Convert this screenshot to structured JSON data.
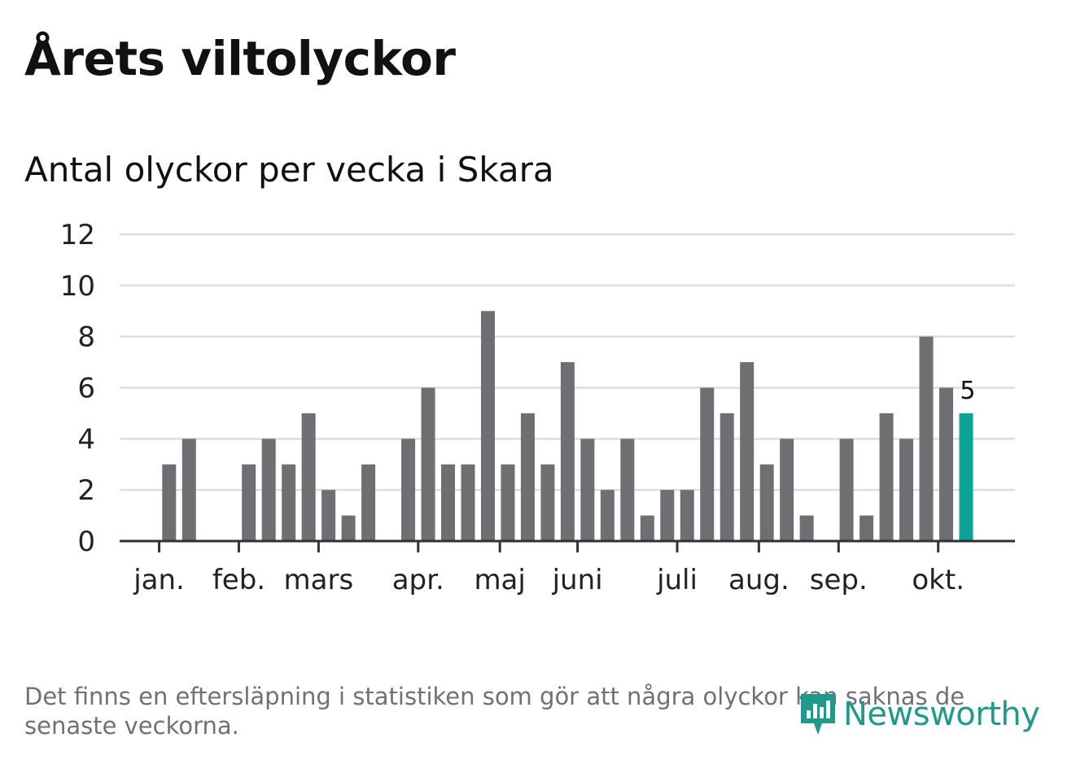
{
  "header": {
    "title": "Årets viltolyckor",
    "subtitle": "Antal olyckor per vecka i Skara"
  },
  "chart_data": {
    "type": "bar",
    "title": "Antal olyckor per vecka i Skara",
    "xlabel": "",
    "ylabel": "",
    "ylim": [
      0,
      12
    ],
    "yticks": [
      "0",
      "2",
      "4",
      "6",
      "8",
      "10",
      "12"
    ],
    "grid": true,
    "weeks": [
      1,
      2,
      3,
      4,
      5,
      6,
      7,
      8,
      9,
      10,
      11,
      12,
      13,
      14,
      15,
      16,
      17,
      18,
      19,
      20,
      21,
      22,
      23,
      24,
      25,
      26,
      27,
      28,
      29,
      30,
      31,
      32,
      33,
      34,
      35,
      36,
      37,
      38,
      39,
      40,
      41,
      42
    ],
    "values": [
      null,
      3,
      4,
      null,
      null,
      3,
      4,
      3,
      5,
      2,
      1,
      3,
      null,
      4,
      6,
      3,
      3,
      9,
      3,
      5,
      3,
      7,
      4,
      2,
      4,
      1,
      2,
      2,
      6,
      5,
      7,
      3,
      4,
      1,
      null,
      4,
      1,
      5,
      4,
      8,
      6,
      5
    ],
    "month_ticks": [
      {
        "label": "jan.",
        "week": 1.5
      },
      {
        "label": "feb.",
        "week": 5.5
      },
      {
        "label": "mars",
        "week": 9.5
      },
      {
        "label": "apr.",
        "week": 14.5
      },
      {
        "label": "maj",
        "week": 18.6
      },
      {
        "label": "juni",
        "week": 22.5
      },
      {
        "label": "juli",
        "week": 27.5
      },
      {
        "label": "aug.",
        "week": 31.6
      },
      {
        "label": "sep.",
        "week": 35.6
      },
      {
        "label": "okt.",
        "week": 40.6
      }
    ],
    "highlight": {
      "week": 42,
      "value": 5,
      "label": "5"
    },
    "colors": {
      "bar": "#6f6e73",
      "highlight": "#0aa398",
      "grid": "#dddddd",
      "axis": "#333333",
      "text": "#222222"
    }
  },
  "footer": {
    "note": "Det finns en eftersläpning i statistiken som gör att några olyckor kan saknas de senaste veckorna.",
    "logo_text": "Newsworthy",
    "logo_icon": "newsworthy-bar-chart-icon"
  }
}
